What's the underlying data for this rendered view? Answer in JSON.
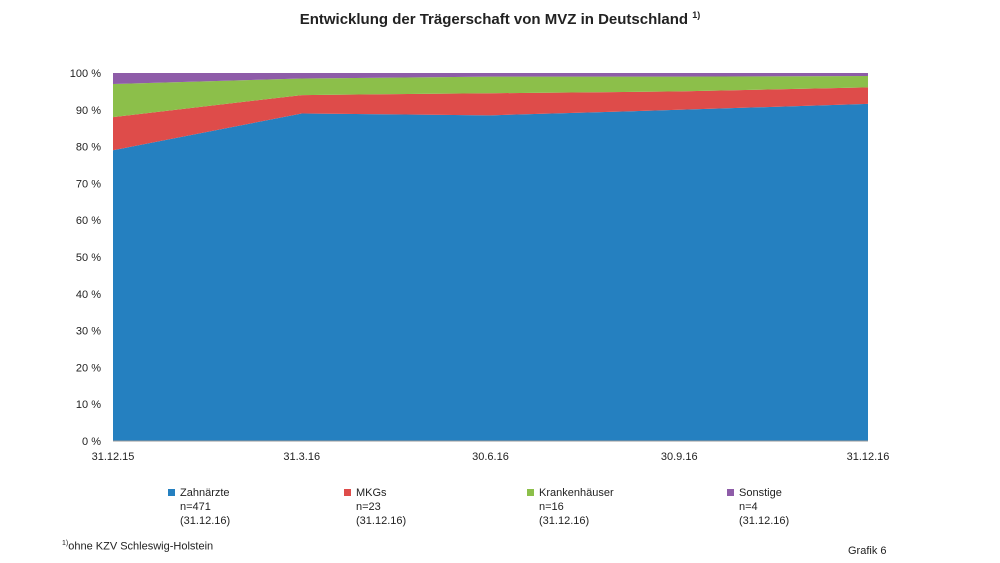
{
  "chart_data": {
    "type": "area",
    "stacked": "percent",
    "title": "Entwicklung der Trägerschaft von MVZ in Deutschland",
    "title_footnote": "1)",
    "categories": [
      "31.12.15",
      "31.3.16",
      "30.6.16",
      "30.9.16",
      "31.12.16"
    ],
    "yticks": [
      "0 %",
      "10 %",
      "20 %",
      "30 %",
      "40 %",
      "50 %",
      "60 %",
      "70 %",
      "80 %",
      "90 %",
      "100 %"
    ],
    "ylim": [
      0,
      100
    ],
    "series": [
      {
        "name": "Zahnärzte",
        "n": "n=471",
        "date": "(31.12.16)",
        "color": "#2580c0",
        "values": [
          79,
          89,
          88.5,
          90,
          91.6
        ]
      },
      {
        "name": "MKGs",
        "n": "n=23",
        "date": "(31.12.16)",
        "color": "#de4c4a",
        "values": [
          9,
          5,
          6,
          5,
          4.5
        ]
      },
      {
        "name": "Krankenhäuser",
        "n": "n=16",
        "date": "(31.12.16)",
        "color": "#8cbf4a",
        "values": [
          9,
          4.5,
          4.5,
          4,
          3.1
        ]
      },
      {
        "name": "Sonstige",
        "n": "n=4",
        "date": "(31.12.16)",
        "color": "#8e5ca8",
        "values": [
          3,
          1.5,
          1,
          1,
          0.8
        ]
      }
    ],
    "legend_position": "bottom"
  },
  "footnote": {
    "mark": "1)",
    "text": "ohne KZV Schleswig-Holstein"
  },
  "grafik": "Grafik 6"
}
